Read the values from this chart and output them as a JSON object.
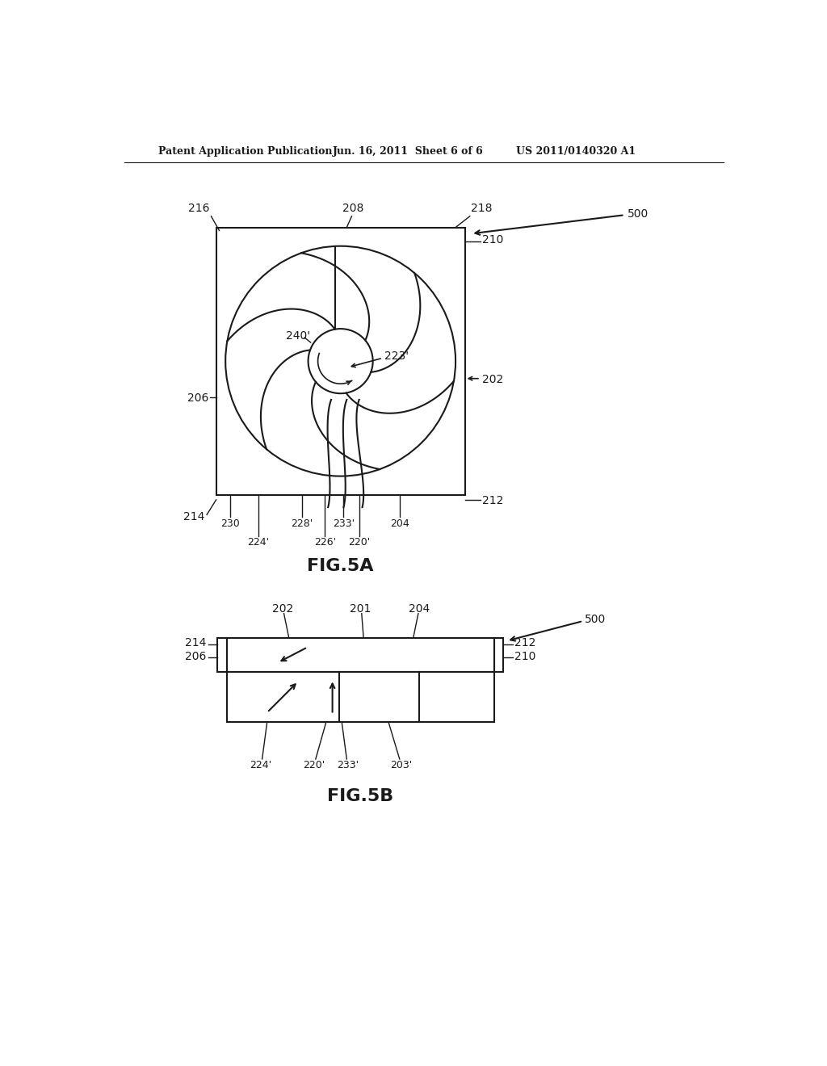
{
  "bg_color": "#ffffff",
  "line_color": "#1a1a1a",
  "header_left": "Patent Application Publication",
  "header_center": "Jun. 16, 2011  Sheet 6 of 6",
  "header_right": "US 2011/0140320 A1",
  "fig5a_label": "FIG.5A",
  "fig5b_label": "FIG.5B"
}
